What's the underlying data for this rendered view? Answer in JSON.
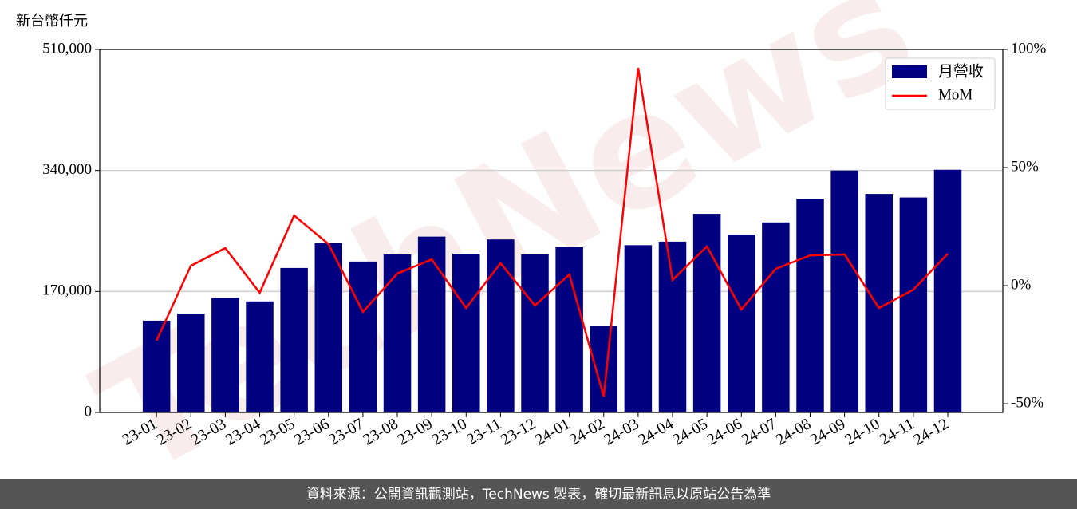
{
  "chart_data": {
    "type": "bar-line",
    "y_label": "新台幣仟元",
    "watermark": "TechNews",
    "footer": "資料來源：公開資訊觀測站，TechNews 製表，確切最新訊息以原站公告為準",
    "categories": [
      "23-01",
      "23-02",
      "23-03",
      "23-04",
      "23-05",
      "23-06",
      "23-07",
      "23-08",
      "23-09",
      "23-10",
      "23-11",
      "23-12",
      "24-01",
      "24-02",
      "24-03",
      "24-04",
      "24-05",
      "24-06",
      "24-07",
      "24-08",
      "24-09",
      "24-10",
      "24-11",
      "24-12"
    ],
    "series": [
      {
        "name": "月營收",
        "color": "#000080",
        "type": "bar",
        "values": [
          129000,
          139000,
          161000,
          156000,
          203000,
          238000,
          212000,
          222000,
          247000,
          223000,
          243000,
          222000,
          232000,
          122000,
          235000,
          240000,
          279000,
          250000,
          267000,
          300000,
          340000,
          307000,
          302000,
          341000
        ]
      },
      {
        "name": "MoM",
        "color": "#ff0000",
        "type": "line",
        "axis": "y2",
        "values": [
          -23.3,
          8.4,
          15.9,
          -3.0,
          29.7,
          17.6,
          -11.1,
          5.1,
          11.1,
          -9.5,
          9.5,
          -8.4,
          4.7,
          -47.0,
          92.2,
          2.4,
          16.6,
          -10.1,
          7.1,
          12.8,
          13.2,
          -9.5,
          -1.7,
          13.5
        ]
      }
    ],
    "ylim": [
      0,
      510000
    ],
    "yticks": [
      {
        "value": 0,
        "label": "0"
      },
      {
        "value": 170000,
        "label": "170,000"
      },
      {
        "value": 340000,
        "label": "340,000"
      },
      {
        "value": 510000,
        "label": "510,000"
      }
    ],
    "y2lim": [
      -53.7,
      100
    ],
    "y2ticks": [
      {
        "value": -50,
        "label": "-50%"
      },
      {
        "value": 0,
        "label": "0%"
      },
      {
        "value": 50,
        "label": "50%"
      },
      {
        "value": 100,
        "label": "100%"
      }
    ],
    "grid": true,
    "legend": "upper right"
  }
}
